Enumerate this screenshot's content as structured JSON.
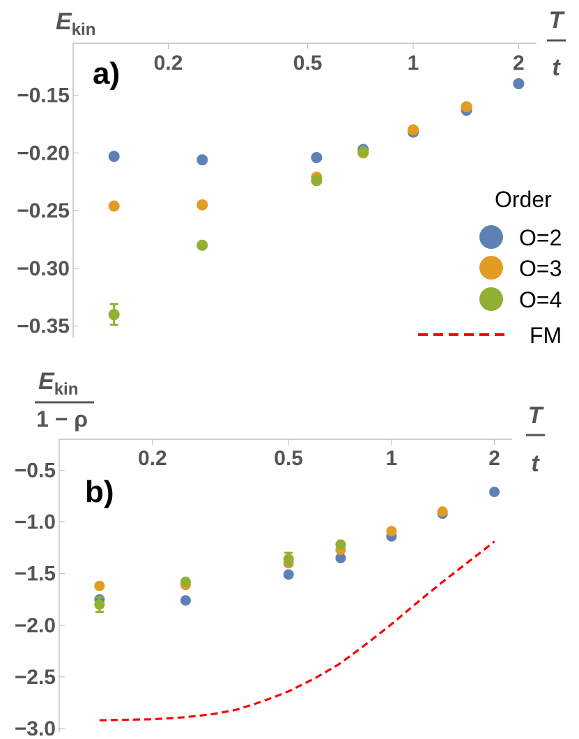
{
  "chart_data": [
    {
      "id": "a",
      "type": "scatter",
      "panel_label": "a)",
      "ylabel_main": "E",
      "ylabel_sub": "kin",
      "xlabel_num": "T",
      "xlabel_den": "t",
      "xscale": "log",
      "xlim": [
        0.12,
        2.1
      ],
      "ylim": [
        -0.355,
        -0.105
      ],
      "xticks": [
        {
          "value": 0.2,
          "label": "0.2"
        },
        {
          "value": 0.5,
          "label": "0.5"
        },
        {
          "value": 1,
          "label": "1"
        },
        {
          "value": 2,
          "label": "2"
        }
      ],
      "yticks": [
        {
          "value": -0.15,
          "label": "−0.15"
        },
        {
          "value": -0.2,
          "label": "−0.20"
        },
        {
          "value": -0.25,
          "label": "−0.25"
        },
        {
          "value": -0.3,
          "label": "−0.30"
        },
        {
          "value": -0.35,
          "label": "−0.35"
        }
      ],
      "series": [
        {
          "name": "O=2",
          "color": "#5e81b5",
          "kind": "points",
          "points": [
            {
              "x": 0.14,
              "y": -0.203
            },
            {
              "x": 0.25,
              "y": -0.206
            },
            {
              "x": 0.53,
              "y": -0.204
            },
            {
              "x": 0.72,
              "y": -0.197
            },
            {
              "x": 1.0,
              "y": -0.182
            },
            {
              "x": 1.42,
              "y": -0.163
            },
            {
              "x": 2.0,
              "y": -0.14
            }
          ]
        },
        {
          "name": "O=3",
          "color": "#e19c24",
          "kind": "points",
          "points": [
            {
              "x": 0.14,
              "y": -0.246
            },
            {
              "x": 0.25,
              "y": -0.245
            },
            {
              "x": 0.53,
              "y": -0.221
            },
            {
              "x": 0.72,
              "y": -0.2
            },
            {
              "x": 1.0,
              "y": -0.18
            },
            {
              "x": 1.42,
              "y": -0.16
            }
          ]
        },
        {
          "name": "O=4",
          "color": "#8fb032",
          "kind": "points",
          "points": [
            {
              "x": 0.14,
              "y": -0.34,
              "err": 0.009
            },
            {
              "x": 0.25,
              "y": -0.28
            },
            {
              "x": 0.53,
              "y": -0.224
            },
            {
              "x": 0.72,
              "y": -0.199
            }
          ]
        }
      ]
    },
    {
      "id": "b",
      "type": "scatter",
      "panel_label": "b)",
      "ylabel_main": "E",
      "ylabel_sub": "kin",
      "ylabel_den": "1 − ρ",
      "xlabel_num": "T",
      "xlabel_den": "t",
      "xscale": "log",
      "xlim": [
        0.12,
        2.1
      ],
      "ylim": [
        -3.0,
        -0.2
      ],
      "xticks": [
        {
          "value": 0.2,
          "label": "0.2"
        },
        {
          "value": 0.5,
          "label": "0.5"
        },
        {
          "value": 1,
          "label": "1"
        },
        {
          "value": 2,
          "label": "2"
        }
      ],
      "yticks": [
        {
          "value": -0.5,
          "label": "−0.5"
        },
        {
          "value": -1.0,
          "label": "−1.0"
        },
        {
          "value": -1.5,
          "label": "−1.5"
        },
        {
          "value": -2.0,
          "label": "−2.0"
        },
        {
          "value": -2.5,
          "label": "−2.5"
        },
        {
          "value": -3.0,
          "label": "−3.0"
        }
      ],
      "series": [
        {
          "name": "O=2",
          "color": "#5e81b5",
          "kind": "points",
          "points": [
            {
              "x": 0.14,
              "y": -1.75
            },
            {
              "x": 0.25,
              "y": -1.76
            },
            {
              "x": 0.5,
              "y": -1.51
            },
            {
              "x": 0.71,
              "y": -1.35
            },
            {
              "x": 1.0,
              "y": -1.14
            },
            {
              "x": 1.41,
              "y": -0.92
            },
            {
              "x": 2.0,
              "y": -0.71
            }
          ]
        },
        {
          "name": "O=3",
          "color": "#e19c24",
          "kind": "points",
          "points": [
            {
              "x": 0.14,
              "y": -1.62
            },
            {
              "x": 0.25,
              "y": -1.61
            },
            {
              "x": 0.5,
              "y": -1.4
            },
            {
              "x": 0.71,
              "y": -1.27
            },
            {
              "x": 1.0,
              "y": -1.09
            },
            {
              "x": 1.41,
              "y": -0.9
            }
          ]
        },
        {
          "name": "O=4",
          "color": "#8fb032",
          "kind": "points",
          "points": [
            {
              "x": 0.14,
              "y": -1.8,
              "err": 0.07
            },
            {
              "x": 0.25,
              "y": -1.58
            },
            {
              "x": 0.5,
              "y": -1.36,
              "err": 0.06
            },
            {
              "x": 0.71,
              "y": -1.22
            }
          ]
        },
        {
          "name": "FM",
          "color": "#ff0000",
          "kind": "dashed-line",
          "points": [
            {
              "x": 0.14,
              "y": -2.92
            },
            {
              "x": 0.2,
              "y": -2.91
            },
            {
              "x": 0.25,
              "y": -2.89
            },
            {
              "x": 0.3,
              "y": -2.86
            },
            {
              "x": 0.35,
              "y": -2.82
            },
            {
              "x": 0.4,
              "y": -2.76
            },
            {
              "x": 0.45,
              "y": -2.7
            },
            {
              "x": 0.5,
              "y": -2.64
            },
            {
              "x": 0.6,
              "y": -2.51
            },
            {
              "x": 0.7,
              "y": -2.38
            },
            {
              "x": 0.8,
              "y": -2.24
            },
            {
              "x": 0.9,
              "y": -2.11
            },
            {
              "x": 1.0,
              "y": -1.99
            },
            {
              "x": 1.2,
              "y": -1.77
            },
            {
              "x": 1.4,
              "y": -1.59
            },
            {
              "x": 1.6,
              "y": -1.44
            },
            {
              "x": 1.8,
              "y": -1.31
            },
            {
              "x": 2.0,
              "y": -1.19
            }
          ]
        }
      ]
    }
  ],
  "legend": {
    "title": "Order",
    "entries": [
      {
        "label": "O=2",
        "color": "#5e81b5",
        "kind": "dot"
      },
      {
        "label": "O=3",
        "color": "#e19c24",
        "kind": "dot"
      },
      {
        "label": "O=4",
        "color": "#8fb032",
        "kind": "dot"
      },
      {
        "label": "FM",
        "color": "#ff0000",
        "kind": "dash"
      }
    ]
  }
}
